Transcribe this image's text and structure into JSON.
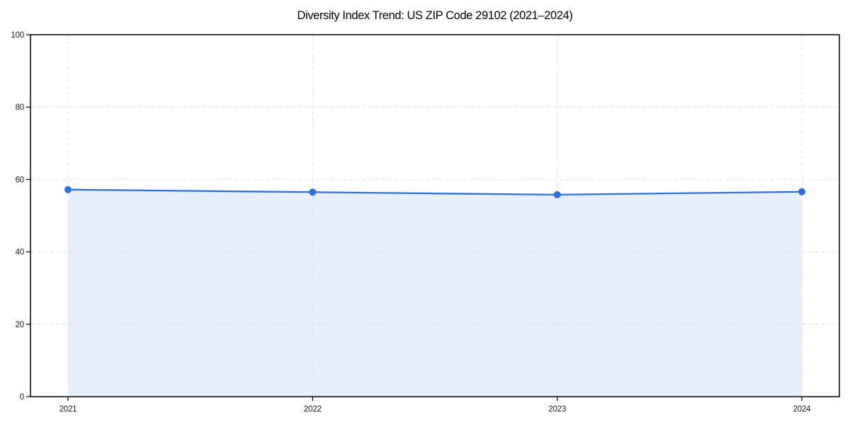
{
  "figure": {
    "background": "#ffffff"
  },
  "chart_data": {
    "type": "area",
    "title": "Diversity Index Trend: US ZIP Code 29102 (2021–2024)",
    "categories": [
      "2021",
      "2022",
      "2023",
      "2024"
    ],
    "values": [
      57.2,
      56.5,
      55.8,
      56.6
    ],
    "xlabel": "",
    "ylabel": "",
    "ylim": [
      0,
      100
    ],
    "yticks": [
      0,
      20,
      40,
      60,
      80,
      100
    ],
    "grid": true,
    "grid_style": "dashed",
    "legend": "none",
    "marker": "circle",
    "colors": {
      "line": "#2a70e0",
      "marker": "#2a70e0",
      "fill": "#e7effc",
      "grid": "#e0e0e0",
      "spine": "#000000",
      "tick_label": "#1a1a1a",
      "title": "#000000"
    }
  }
}
